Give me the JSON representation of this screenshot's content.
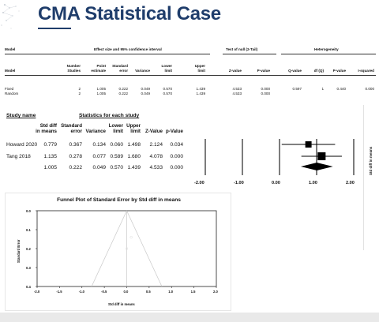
{
  "slide": {
    "title": "CMA Statistical Case"
  },
  "top_table": {
    "h_model": "Model",
    "h_effect_group": "Effect size and 95% confidence interval",
    "h_null_group": "Test of null (2-Tail)",
    "h_het_group": "Heterogeneity",
    "cols": {
      "model": "Model",
      "studies": [
        "Number",
        "Studies"
      ],
      "point": [
        "Point",
        "estimate"
      ],
      "se": [
        "Standard",
        "error"
      ],
      "variance": "Variance",
      "lower": [
        "Lower",
        "limit"
      ],
      "upper": [
        "Upper",
        "limit"
      ],
      "z": "Z-value",
      "p": "P-value",
      "q": "Q-value",
      "df": "df (Q)",
      "hp": "P-value",
      "i2": "I-squared"
    },
    "rows": [
      {
        "model": "Fixed",
        "studies": "2",
        "point": "1.005",
        "se": "0.222",
        "variance": "0.049",
        "lower": "0.570",
        "upper": "1.439",
        "z": "4.533",
        "p": "0.000",
        "q": "0.597",
        "df": "1",
        "hp": "0.440",
        "i2": "0.000"
      },
      {
        "model": "Random",
        "studies": "2",
        "point": "1.005",
        "se": "0.222",
        "variance": "0.049",
        "lower": "0.570",
        "upper": "1.439",
        "z": "4.533",
        "p": "0.000",
        "q": "",
        "df": "",
        "hp": "",
        "i2": ""
      }
    ]
  },
  "forest": {
    "h_study": "Study name",
    "h_stats": "Statistics for each study",
    "cols": {
      "std": [
        "Std diff",
        "in means"
      ],
      "se": [
        "Standard",
        "error"
      ],
      "variance": "Variance",
      "lower": [
        "Lower",
        "limit"
      ],
      "upper": [
        "Upper",
        "limit"
      ],
      "z": "Z-Value",
      "p": "p-Value"
    },
    "rows": [
      {
        "name": "Howard 2020",
        "std": "0.779",
        "se": "0.367",
        "variance": "0.134",
        "lower": "0.060",
        "upper": "1.498",
        "z": "2.124",
        "p": "0.034",
        "weight": 0.37
      },
      {
        "name": "Tang 2018",
        "std": "1.135",
        "se": "0.278",
        "variance": "0.077",
        "lower": "0.589",
        "upper": "1.680",
        "z": "4.078",
        "p": "0.000",
        "weight": 0.63
      },
      {
        "name": "",
        "std": "1.005",
        "se": "0.222",
        "variance": "0.049",
        "lower": "0.570",
        "upper": "1.439",
        "z": "4.533",
        "p": "0.000"
      }
    ],
    "summary": {
      "est": 1.005,
      "lower": 0.57,
      "upper": 1.439
    },
    "axis_ticks": [
      "-2.00",
      "-1.00",
      "0.00",
      "1.00",
      "2.00"
    ],
    "side_label": "Std diff in means"
  },
  "chart_data": {
    "type": "scatter",
    "title": "Funnel Plot of Standard Error by Std diff in means",
    "xlabel": "Std diff in means",
    "ylabel": "Standard Error",
    "x_ticks": [
      "-2.0",
      "-1.5",
      "-1.0",
      "-0.5",
      "0.0",
      "0.5",
      "1.0",
      "1.5",
      "2.0"
    ],
    "y_ticks": [
      "0.0",
      "0.1",
      "0.2",
      "0.3",
      "0.4"
    ],
    "xlim": [
      -2.0,
      2.0
    ],
    "ylim": [
      0.0,
      0.4
    ],
    "points": [
      {
        "x": 0.1,
        "y": 0.14
      },
      {
        "x": 0.0,
        "y": 0.2
      }
    ],
    "funnel_center": 0.0
  }
}
